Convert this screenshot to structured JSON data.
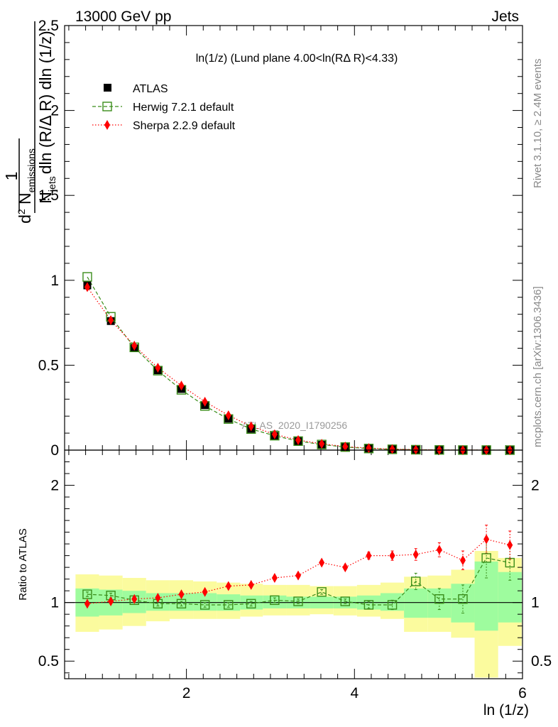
{
  "header": {
    "beam": "13000 GeV pp",
    "process": "Jets"
  },
  "plot_title": "ln(1/z) (Lund plane 4.00<ln(RΔ R)<4.33)",
  "side_labels": {
    "rivet": "Rivet 3.1.10, ≥ 2.4M events",
    "mcplots": "mcplots.cern.ch [arXiv:1306.3436]"
  },
  "watermark": "ATLAS_2020_I1790256",
  "colors": {
    "atlas": "#000000",
    "herwig": "#3a8d1a",
    "sherpa": "#ff0000",
    "band_outer": "#fbfb9e",
    "band_inner": "#9efc9e"
  },
  "chart_data": [
    {
      "type": "scatter",
      "panel": "main",
      "ylabel": "1/N_jets d² N_emissions / dln (R/Δ R) dln (1/z)",
      "ylabel_parts": {
        "frac1": "1",
        "num_d": "d",
        "num_exp": "2",
        "num_N": " N",
        "num_sub": "emissions",
        "den_N": "N",
        "den_sub": "jets",
        "den_rest": "dln (R/Δ R) dln (1/z)"
      },
      "ylim": [
        0,
        2.5
      ],
      "yticks": [
        "0",
        "0.5",
        "1",
        "1.5",
        "2",
        "2.5"
      ],
      "x": [
        0.82,
        1.1,
        1.38,
        1.66,
        1.94,
        2.22,
        2.5,
        2.77,
        3.05,
        3.33,
        3.61,
        3.89,
        4.17,
        4.45,
        4.73,
        5.01,
        5.29,
        5.57,
        5.85
      ],
      "series": [
        {
          "name": "ATLAS",
          "marker": "filled-square",
          "values": [
            0.97,
            0.76,
            0.6,
            0.47,
            0.36,
            0.265,
            0.185,
            0.125,
            0.083,
            0.052,
            0.031,
            0.018,
            0.0095,
            0.0048,
            0.0022,
            0.001,
            0.0004,
            0.0002,
            0.0001
          ]
        },
        {
          "name": "Herwig 7.2.1 default",
          "marker": "open-square",
          "line": "dashed",
          "values": [
            1.02,
            0.785,
            0.605,
            0.468,
            0.355,
            0.26,
            0.183,
            0.124,
            0.085,
            0.053,
            0.033,
            0.018,
            0.0094,
            0.0048,
            0.0024,
            0.001,
            0.0004,
            0.0003,
            0.0001
          ]
        },
        {
          "name": "Sherpa 2.2.9 default",
          "marker": "diamond",
          "line": "dotted",
          "values": [
            0.96,
            0.765,
            0.615,
            0.485,
            0.38,
            0.285,
            0.205,
            0.14,
            0.093,
            0.059,
            0.037,
            0.021,
            0.012,
            0.006,
            0.0028,
            0.0013,
            0.0005,
            0.0003,
            0.0001
          ]
        }
      ]
    },
    {
      "type": "scatter",
      "panel": "ratio",
      "xlabel": "ln (1/z)",
      "ylabel": "Ratio to ATLAS",
      "ylim": [
        0.35,
        2.3
      ],
      "xlim": [
        0.55,
        6.0
      ],
      "xticks": [
        "2",
        "4",
        "6"
      ],
      "yticks": [
        "0.5",
        "1",
        "2"
      ],
      "reference": 1,
      "band_bins": [
        {
          "lo": 0.68,
          "hi": 0.96,
          "y1lo": 0.75,
          "y1hi": 1.24,
          "y2lo": 0.88,
          "y2hi": 1.12
        },
        {
          "lo": 0.96,
          "hi": 1.24,
          "y1lo": 0.77,
          "y1hi": 1.23,
          "y2lo": 0.89,
          "y2hi": 1.11
        },
        {
          "lo": 1.24,
          "hi": 1.52,
          "y1lo": 0.8,
          "y1hi": 1.21,
          "y2lo": 0.91,
          "y2hi": 1.1
        },
        {
          "lo": 1.52,
          "hi": 1.8,
          "y1lo": 0.84,
          "y1hi": 1.19,
          "y2lo": 0.93,
          "y2hi": 1.08
        },
        {
          "lo": 1.8,
          "hi": 2.08,
          "y1lo": 0.86,
          "y1hi": 1.19,
          "y2lo": 0.93,
          "y2hi": 1.08
        },
        {
          "lo": 2.08,
          "hi": 2.36,
          "y1lo": 0.86,
          "y1hi": 1.18,
          "y2lo": 0.93,
          "y2hi": 1.08
        },
        {
          "lo": 2.36,
          "hi": 2.64,
          "y1lo": 0.86,
          "y1hi": 1.17,
          "y2lo": 0.93,
          "y2hi": 1.07
        },
        {
          "lo": 2.64,
          "hi": 2.91,
          "y1lo": 0.88,
          "y1hi": 1.16,
          "y2lo": 0.94,
          "y2hi": 1.06
        },
        {
          "lo": 2.91,
          "hi": 3.19,
          "y1lo": 0.89,
          "y1hi": 1.15,
          "y2lo": 0.95,
          "y2hi": 1.06
        },
        {
          "lo": 3.19,
          "hi": 3.47,
          "y1lo": 0.89,
          "y1hi": 1.15,
          "y2lo": 0.95,
          "y2hi": 1.05
        },
        {
          "lo": 3.47,
          "hi": 3.75,
          "y1lo": 0.9,
          "y1hi": 1.14,
          "y2lo": 0.95,
          "y2hi": 1.05
        },
        {
          "lo": 3.75,
          "hi": 4.03,
          "y1lo": 0.89,
          "y1hi": 1.14,
          "y2lo": 0.95,
          "y2hi": 1.05
        },
        {
          "lo": 4.03,
          "hi": 4.31,
          "y1lo": 0.88,
          "y1hi": 1.15,
          "y2lo": 0.94,
          "y2hi": 1.06
        },
        {
          "lo": 4.31,
          "hi": 4.59,
          "y1lo": 0.86,
          "y1hi": 1.17,
          "y2lo": 0.93,
          "y2hi": 1.08
        },
        {
          "lo": 4.59,
          "hi": 4.87,
          "y1lo": 0.75,
          "y1hi": 1.22,
          "y2lo": 0.87,
          "y2hi": 1.12
        },
        {
          "lo": 4.87,
          "hi": 5.15,
          "y1lo": 0.75,
          "y1hi": 1.23,
          "y2lo": 0.87,
          "y2hi": 1.12
        },
        {
          "lo": 5.15,
          "hi": 5.43,
          "y1lo": 0.7,
          "y1hi": 1.28,
          "y2lo": 0.83,
          "y2hi": 1.16
        },
        {
          "lo": 5.43,
          "hi": 5.71,
          "y1lo": 0.36,
          "y1hi": 1.44,
          "y2lo": 0.76,
          "y2hi": 1.35
        },
        {
          "lo": 5.71,
          "hi": 5.99,
          "y1lo": 0.63,
          "y1hi": 1.38,
          "y2lo": 0.83,
          "y2hi": 1.26
        }
      ],
      "series": [
        {
          "name": "Herwig 7.2.1 default",
          "values": [
            1.07,
            1.06,
            1.02,
            0.99,
            0.99,
            0.98,
            0.98,
            0.99,
            1.02,
            1.01,
            1.09,
            1.01,
            0.98,
            0.98,
            1.18,
            1.03,
            1.03,
            1.38,
            1.34
          ],
          "err": [
            0.02,
            0.02,
            0.02,
            0.02,
            0.02,
            0.02,
            0.02,
            0.02,
            0.02,
            0.02,
            0.02,
            0.02,
            0.03,
            0.04,
            0.07,
            0.09,
            0.12,
            0.17,
            0.15
          ]
        },
        {
          "name": "Sherpa 2.2.9 default",
          "values": [
            0.99,
            1.01,
            1.03,
            1.04,
            1.07,
            1.09,
            1.14,
            1.15,
            1.21,
            1.23,
            1.34,
            1.3,
            1.4,
            1.4,
            1.41,
            1.45,
            1.36,
            1.54,
            1.49
          ],
          "err": [
            0.01,
            0.01,
            0.01,
            0.01,
            0.01,
            0.01,
            0.01,
            0.01,
            0.01,
            0.01,
            0.01,
            0.02,
            0.03,
            0.04,
            0.05,
            0.06,
            0.08,
            0.12,
            0.12
          ]
        }
      ]
    }
  ]
}
